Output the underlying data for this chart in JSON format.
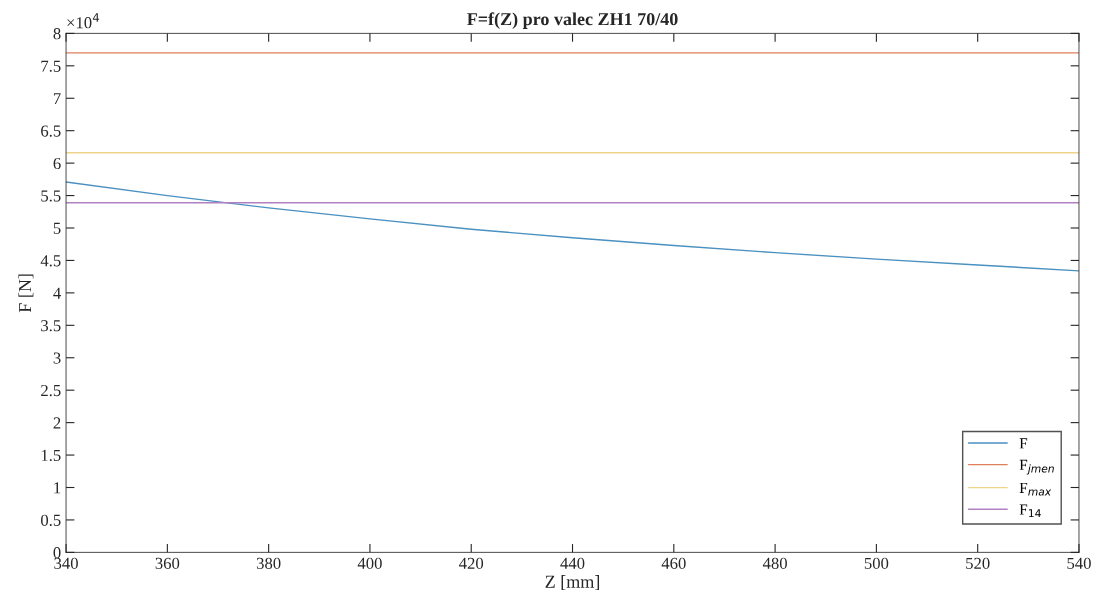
{
  "chart_data": {
    "type": "line",
    "title": "F=f(Z) pro valec ZH1 70/40",
    "xlabel": "Z [mm]",
    "ylabel": "F [N]",
    "annotations": [
      "×10$^{4}$"
    ],
    "series": [
      {
        "name": "F",
        "color": "#4a90c0",
        "x": [
          340,
          360,
          380,
          400,
          420,
          440,
          460,
          480,
          500,
          520,
          540
        ],
        "values": [
          5.71,
          5.5,
          5.31,
          5.14,
          4.98,
          4.85,
          4.73,
          4.62,
          4.52,
          4.43,
          4.34
        ]
      },
      {
        "name": "F$_{jmen}$",
        "color": "#e0805a",
        "x": [
          340,
          540
        ],
        "values": [
          7.7,
          7.7
        ]
      },
      {
        "name": "F$_{max}$",
        "color": "#eed48a",
        "x": [
          340,
          540
        ],
        "values": [
          6.16,
          6.16
        ]
      },
      {
        "name": "F$_{14}$",
        "color": "#b080c0",
        "x": [
          340,
          540
        ],
        "values": [
          5.39,
          5.39
        ]
      }
    ],
    "xlim": [
      340,
      540
    ],
    "xticks": [
      340,
      360,
      380,
      400,
      420,
      440,
      460,
      480,
      500,
      520,
      540
    ],
    "ylim": [
      0,
      8
    ],
    "yticks": [
      0,
      0.5,
      1,
      1.5,
      2,
      2.5,
      3,
      3.5,
      4,
      4.5,
      5,
      5.5,
      6,
      6.5,
      7,
      7.5,
      8
    ],
    "grid": false,
    "legend": "lower right",
    "marker": "none",
    "line_style": "solid"
  }
}
